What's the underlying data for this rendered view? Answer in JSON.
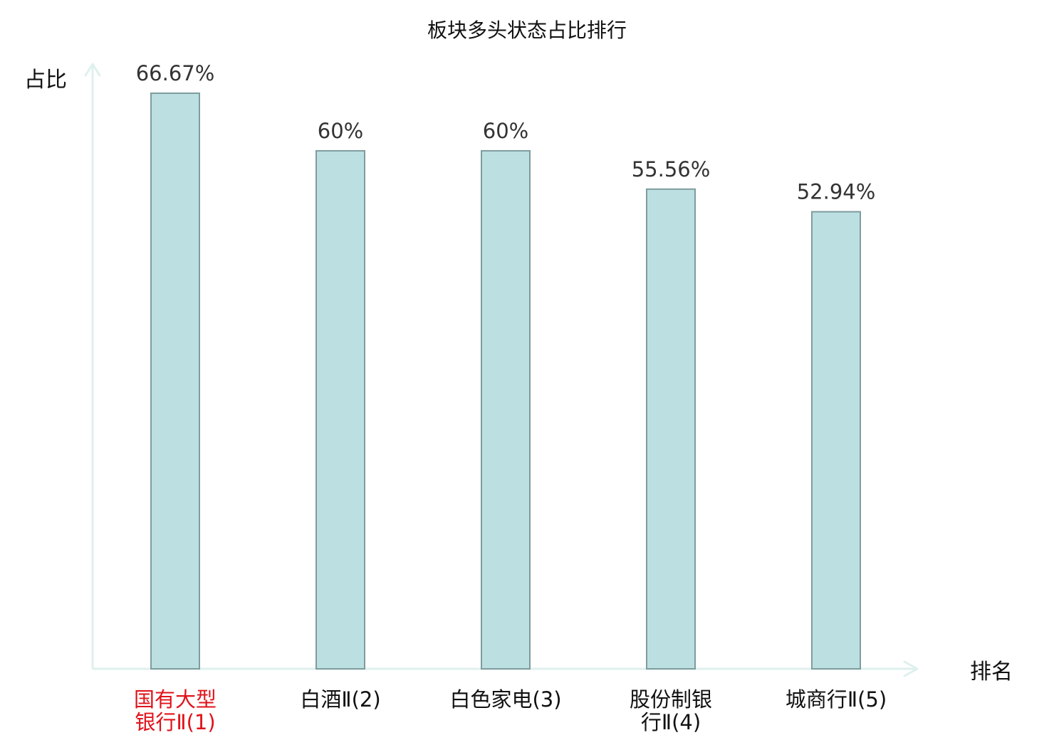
{
  "chart_data": {
    "type": "bar",
    "title": "板块多头状态占比排行",
    "xlabel": "排名",
    "ylabel": "占比",
    "ylim": [
      0,
      66.67
    ],
    "grid": false,
    "legend": "none",
    "categories": [
      [
        "国有大型",
        "银行Ⅱ(1)"
      ],
      [
        "白酒Ⅱ(2)"
      ],
      [
        "白色家电(3)"
      ],
      [
        "股份制银",
        "行Ⅱ(4)"
      ],
      [
        "城商行Ⅱ(5)"
      ]
    ],
    "values": [
      66.67,
      60,
      60,
      55.56,
      52.94
    ],
    "value_labels": [
      "66.67%",
      "60%",
      "60%",
      "55.56%",
      "52.94%"
    ],
    "highlight_index": 0
  },
  "colors": {
    "bar_fill": "#bce0e2",
    "bar_stroke": "#7f9c9d",
    "axis": "#dff0ee",
    "label_text": "#111111",
    "value_text": "#333333",
    "highlight_text": "#e0131a"
  }
}
